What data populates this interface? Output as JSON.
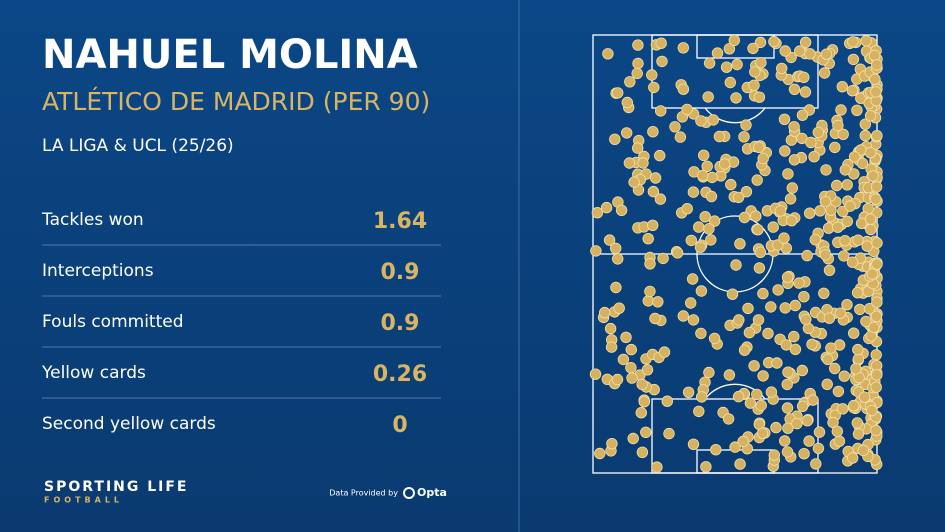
{
  "header": {
    "title": "NAHUEL MOLINA",
    "subtitle": "ATLÉTICO DE MADRID (PER 90)",
    "competition": "LA LIGA & UCL (25/26)"
  },
  "stats": {
    "rows": [
      {
        "label": "Tackles won",
        "value": "1.64"
      },
      {
        "label": "Interceptions",
        "value": "0.9"
      },
      {
        "label": "Fouls committed",
        "value": "0.9"
      },
      {
        "label": "Yellow cards",
        "value": "0.26"
      },
      {
        "label": "Second yellow cards",
        "value": "0"
      }
    ]
  },
  "footer": {
    "brand": "SPORTING LIFE",
    "brand_sub": "FOOTBALL",
    "credit": "Data Provided by",
    "provider": "Opta"
  }
}
